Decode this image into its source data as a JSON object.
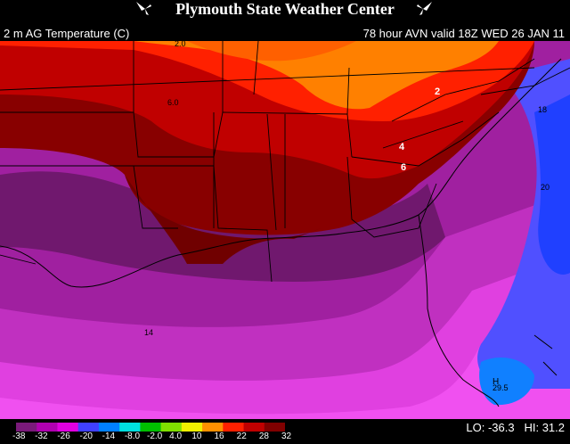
{
  "header": {
    "title": "Plymouth State Weather Center",
    "logo_icon": "snowflake-icon"
  },
  "subheader": {
    "field": "2 m AG Temperature (C)",
    "valid": "78 hour AVN valid 18Z WED 26 JAN 11"
  },
  "map": {
    "contour_labels": [
      "2.0",
      "6.0",
      "2",
      "4",
      "6",
      "18",
      "20",
      "14",
      "H",
      "29.5"
    ]
  },
  "colorbar": {
    "ticks": [
      "-38",
      "-32",
      "-26",
      "-20",
      "-14",
      "-8.0",
      "-2.0",
      "4.0",
      "10",
      "16",
      "22",
      "28",
      "32"
    ],
    "colors": [
      "#7a1a7a",
      "#b000b0",
      "#e000e0",
      "#4040ff",
      "#0080ff",
      "#00e0e0",
      "#00c000",
      "#80e000",
      "#f0f000",
      "#ff9000",
      "#ff2000",
      "#c00000",
      "#800000"
    ]
  },
  "stats": {
    "lo_label": "LO:",
    "lo_value": "-36.3",
    "hi_label": "HI:",
    "hi_value": "31.2"
  }
}
